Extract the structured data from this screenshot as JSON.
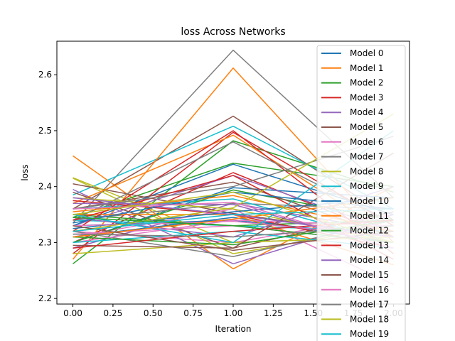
{
  "chart_data": {
    "type": "line",
    "title": "loss Across Networks",
    "xlabel": "Iteration",
    "ylabel": "loss",
    "xlim": [
      -0.1,
      2.1
    ],
    "ylim": [
      2.19,
      2.66
    ],
    "x": [
      0,
      1,
      2
    ],
    "xticks": [
      0.0,
      0.25,
      0.5,
      0.75,
      1.0,
      1.25,
      1.5,
      1.75,
      2.0
    ],
    "xtick_labels": [
      "0.00",
      "0.25",
      "0.50",
      "0.75",
      "1.00",
      "1.25",
      "1.50",
      "1.75",
      "2.00"
    ],
    "yticks": [
      2.2,
      2.3,
      2.4,
      2.5,
      2.6
    ],
    "ytick_labels": [
      "2.2",
      "2.3",
      "2.4",
      "2.5",
      "2.6"
    ],
    "grid": false,
    "legend_position": "upper-right",
    "palette": [
      "#1f77b4",
      "#ff7f0e",
      "#2ca02c",
      "#d62728",
      "#9467bd",
      "#8c564b",
      "#e377c2",
      "#7f7f7f",
      "#bcbd22",
      "#17becf"
    ],
    "legend_entries": [
      "Model 0",
      "Model 1",
      "Model 2",
      "Model 3",
      "Model 4",
      "Model 5",
      "Model 6",
      "Model 7",
      "Model 8",
      "Model 9",
      "Model 10",
      "Model 11",
      "Model 12",
      "Model 13",
      "Model 14",
      "Model 15",
      "Model 16",
      "Model 17",
      "Model 18",
      "Model 19"
    ],
    "series": [
      {
        "name": "Model 0",
        "values": [
          2.33,
          2.34,
          2.31
        ]
      },
      {
        "name": "Model 1",
        "values": [
          2.455,
          2.253,
          2.4
        ]
      },
      {
        "name": "Model 2",
        "values": [
          2.345,
          2.442,
          2.4
        ]
      },
      {
        "name": "Model 3",
        "values": [
          2.3,
          2.425,
          2.31
        ]
      },
      {
        "name": "Model 4",
        "values": [
          2.29,
          2.37,
          2.32
        ]
      },
      {
        "name": "Model 5",
        "values": [
          2.36,
          2.526,
          2.34
        ]
      },
      {
        "name": "Model 6",
        "values": [
          2.32,
          2.3,
          2.35
        ]
      },
      {
        "name": "Model 7",
        "values": [
          2.335,
          2.644,
          2.38
        ]
      },
      {
        "name": "Model 8",
        "values": [
          2.415,
          2.28,
          2.33
        ]
      },
      {
        "name": "Model 9",
        "values": [
          2.385,
          2.508,
          2.36
        ]
      },
      {
        "name": "Model 10",
        "values": [
          2.3,
          2.398,
          2.38
        ]
      },
      {
        "name": "Model 11",
        "values": [
          2.27,
          2.612,
          2.3
        ]
      },
      {
        "name": "Model 12",
        "values": [
          2.262,
          2.482,
          2.39
        ]
      },
      {
        "name": "Model 13",
        "values": [
          2.28,
          2.497,
          2.33
        ]
      },
      {
        "name": "Model 14",
        "values": [
          2.395,
          2.262,
          2.35
        ]
      },
      {
        "name": "Model 15",
        "values": [
          2.405,
          2.352,
          2.31
        ]
      },
      {
        "name": "Model 16",
        "values": [
          2.31,
          2.36,
          2.225
        ]
      },
      {
        "name": "Model 17",
        "values": [
          2.32,
          2.275,
          2.34
        ]
      },
      {
        "name": "Model 18",
        "values": [
          2.416,
          2.3,
          2.31
        ]
      },
      {
        "name": "Model 19",
        "values": [
          2.34,
          2.33,
          2.32
        ]
      },
      {
        "values": [
          2.31,
          2.345,
          2.3
        ]
      },
      {
        "values": [
          2.37,
          2.492,
          2.31
        ]
      },
      {
        "values": [
          2.35,
          2.33,
          2.34
        ]
      },
      {
        "values": [
          2.375,
          2.35,
          2.29
        ]
      },
      {
        "values": [
          2.33,
          2.42,
          2.32
        ]
      },
      {
        "values": [
          2.39,
          2.29,
          2.355
        ]
      },
      {
        "values": [
          2.3,
          2.34,
          2.33
        ]
      },
      {
        "values": [
          2.34,
          2.37,
          2.36
        ]
      },
      {
        "values": [
          2.28,
          2.3,
          2.31
        ]
      },
      {
        "values": [
          2.36,
          2.378,
          2.3
        ]
      },
      {
        "values": [
          2.33,
          2.44,
          2.35
        ]
      },
      {
        "values": [
          2.35,
          2.35,
          2.26
        ]
      },
      {
        "values": [
          2.3,
          2.394,
          2.34
        ]
      },
      {
        "values": [
          2.32,
          2.5,
          2.28
        ]
      },
      {
        "values": [
          2.345,
          2.31,
          2.4
        ]
      },
      {
        "values": [
          2.36,
          2.408,
          2.31
        ]
      },
      {
        "values": [
          2.315,
          2.33,
          2.3
        ]
      },
      {
        "values": [
          2.34,
          2.48,
          2.335
        ]
      },
      {
        "values": [
          2.38,
          2.36,
          2.3
        ]
      },
      {
        "values": [
          2.3,
          2.32,
          2.29
        ]
      },
      {
        "values": [
          2.325,
          2.355,
          2.38
        ]
      },
      {
        "values": [
          2.355,
          2.384,
          2.32
        ]
      },
      {
        "values": [
          2.31,
          2.296,
          2.34
        ]
      },
      {
        "values": [
          2.34,
          2.42,
          2.27
        ]
      },
      {
        "values": [
          2.37,
          2.368,
          2.29
        ]
      },
      {
        "values": [
          2.295,
          2.29,
          2.46
        ]
      },
      {
        "values": [
          2.33,
          2.338,
          2.31
        ]
      },
      {
        "values": [
          2.36,
          2.4,
          2.49
        ]
      },
      {
        "values": [
          2.32,
          2.362,
          2.53
        ]
      },
      {
        "values": [
          2.35,
          2.3,
          2.5
        ]
      },
      {
        "values": [
          2.335,
          2.39,
          2.36
        ]
      },
      {
        "values": [
          2.31,
          2.342,
          2.38
        ]
      },
      {
        "values": [
          2.345,
          2.33,
          2.3
        ]
      },
      {
        "values": [
          2.29,
          2.32,
          2.34
        ]
      },
      {
        "values": [
          2.38,
          2.35,
          2.31
        ]
      },
      {
        "values": [
          2.33,
          2.286,
          2.32
        ]
      },
      {
        "values": [
          2.36,
          2.372,
          2.29
        ]
      },
      {
        "values": [
          2.315,
          2.31,
          2.33
        ]
      },
      {
        "values": [
          2.35,
          2.39,
          2.3
        ]
      },
      {
        "values": [
          2.32,
          2.35,
          2.36
        ]
      }
    ]
  }
}
